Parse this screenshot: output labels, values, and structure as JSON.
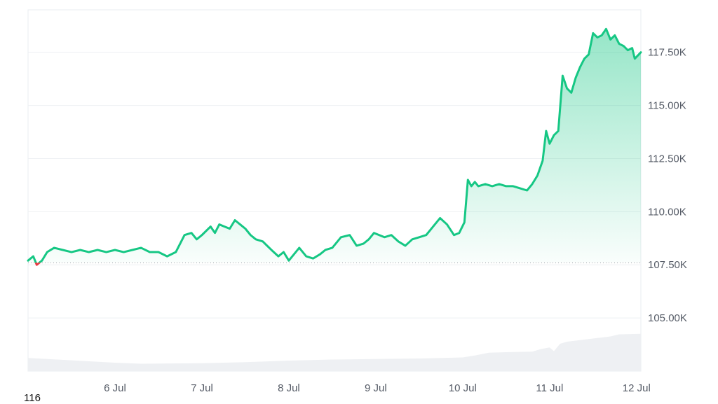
{
  "chart_data": {
    "type": "area",
    "title": "",
    "xlabel": "",
    "ylabel": "",
    "x_ticks": [
      "6 Jul",
      "7 Jul",
      "8 Jul",
      "9 Jul",
      "10 Jul",
      "11 Jul",
      "12 Jul"
    ],
    "y_ticks": [
      105000,
      107500,
      110000,
      112500,
      115000,
      117500
    ],
    "y_tick_labels": [
      "105.00K",
      "107.50K",
      "110.00K",
      "112.50K",
      "115.00K",
      "117.50K"
    ],
    "ylim": [
      102500,
      119500
    ],
    "xlim_days": [
      5.0,
      12.05
    ],
    "baseline": 107600,
    "grid": true,
    "colors": {
      "up": "#16c784",
      "down": "#ea3943",
      "volume": "#eef0f3",
      "grid": "#eef0f3"
    },
    "series": [
      {
        "x": [
          5.0,
          5.06,
          5.1,
          5.16,
          5.22,
          5.3,
          5.4,
          5.5,
          5.6,
          5.7,
          5.8,
          5.9,
          6.0,
          6.1,
          6.2,
          6.3,
          6.4,
          6.5,
          6.6,
          6.7,
          6.8,
          6.88,
          6.94,
          7.0,
          7.1,
          7.15,
          7.2,
          7.26,
          7.32,
          7.38,
          7.44,
          7.5,
          7.56,
          7.62,
          7.7,
          7.8,
          7.88,
          7.94,
          8.0,
          8.06,
          8.12,
          8.2,
          8.28,
          8.36,
          8.42,
          8.5,
          8.6,
          8.7,
          8.78,
          8.86,
          8.92,
          8.98,
          9.04,
          9.1,
          9.18,
          9.26,
          9.34,
          9.42,
          9.5,
          9.58,
          9.66,
          9.74,
          9.82,
          9.9,
          9.96,
          10.02,
          10.06,
          10.1,
          10.14,
          10.18,
          10.26,
          10.34,
          10.42,
          10.5,
          10.58,
          10.66,
          10.74,
          10.8,
          10.86,
          10.92,
          10.96,
          11.0,
          11.05,
          11.1,
          11.15,
          11.2,
          11.25,
          11.3,
          11.35,
          11.4,
          11.45,
          11.5,
          11.55,
          11.6,
          11.65,
          11.7,
          11.75,
          11.8,
          11.85,
          11.9,
          11.95,
          11.98,
          12.05
        ],
        "values": [
          107700,
          107900,
          107500,
          107700,
          108100,
          108300,
          108200,
          108100,
          108200,
          108100,
          108200,
          108100,
          108200,
          108100,
          108200,
          108300,
          108100,
          108100,
          107900,
          108100,
          108900,
          109000,
          108700,
          108900,
          109300,
          109000,
          109400,
          109300,
          109200,
          109600,
          109400,
          109200,
          108900,
          108700,
          108600,
          108200,
          107900,
          108100,
          107700,
          108000,
          108300,
          107900,
          107800,
          108000,
          108200,
          108300,
          108800,
          108900,
          108400,
          108500,
          108700,
          109000,
          108900,
          108800,
          108900,
          108600,
          108400,
          108700,
          108800,
          108900,
          109300,
          109700,
          109400,
          108900,
          109000,
          109500,
          111500,
          111200,
          111400,
          111200,
          111300,
          111200,
          111300,
          111200,
          111200,
          111100,
          111000,
          111300,
          111700,
          112400,
          113800,
          113200,
          113600,
          113800,
          116400,
          115800,
          115600,
          116300,
          116800,
          117200,
          117400,
          118400,
          118200,
          118300,
          118600,
          118100,
          118300,
          117900,
          117800,
          117600,
          117700,
          117200,
          117500
        ]
      }
    ],
    "volume": {
      "x": [
        5.0,
        6.0,
        6.3,
        7.0,
        7.5,
        8.0,
        8.5,
        9.0,
        9.5,
        10.0,
        10.15,
        10.3,
        10.5,
        10.8,
        10.9,
        11.0,
        11.05,
        11.12,
        11.2,
        11.3,
        11.5,
        11.7,
        11.8,
        12.05
      ],
      "values": [
        0.25,
        0.16,
        0.14,
        0.15,
        0.17,
        0.2,
        0.22,
        0.23,
        0.24,
        0.26,
        0.3,
        0.35,
        0.36,
        0.37,
        0.42,
        0.45,
        0.38,
        0.52,
        0.56,
        0.58,
        0.62,
        0.66,
        0.7,
        0.71
      ]
    }
  },
  "footer_label": "116"
}
